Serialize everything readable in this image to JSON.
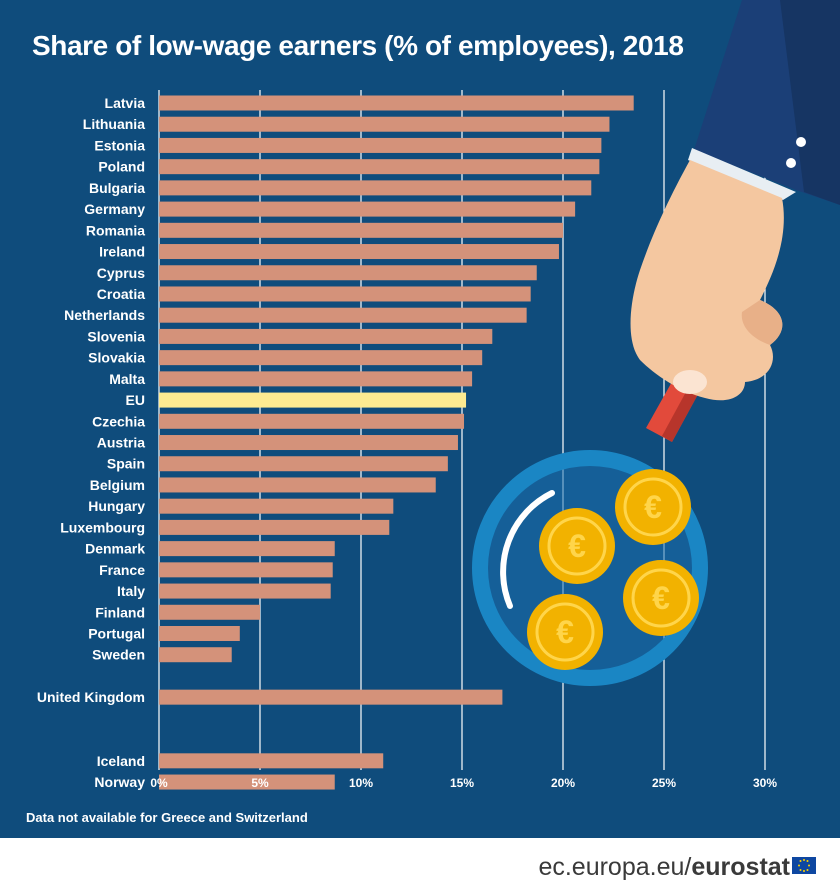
{
  "title": "Share of low-wage earners (% of employees), 2018",
  "footnote": "Data not available for Greece and Switzerland",
  "brand": {
    "site": "ec.europa.eu/",
    "org": "eurostat"
  },
  "colors": {
    "background": "#0f4c7c",
    "bar": "#d4927a",
    "highlight": "#fdeb91",
    "grid": "#ffffff",
    "text": "#ffffff"
  },
  "chart_data": {
    "type": "bar",
    "orientation": "horizontal",
    "title": "Share of low-wage earners (% of employees), 2018",
    "xlabel": "",
    "ylabel": "",
    "xlim": [
      0,
      30
    ],
    "ticks": [
      "0%",
      "5%",
      "10%",
      "15%",
      "20%",
      "25%",
      "30%"
    ],
    "grid": true,
    "highlight": "EU",
    "categories": [
      "Latvia",
      "Lithuania",
      "Estonia",
      "Poland",
      "Bulgaria",
      "Germany",
      "Romania",
      "Ireland",
      "Cyprus",
      "Croatia",
      "Netherlands",
      "Slovenia",
      "Slovakia",
      "Malta",
      "EU",
      "Czechia",
      "Austria",
      "Spain",
      "Belgium",
      "Hungary",
      "Luxembourg",
      "Denmark",
      "France",
      "Italy",
      "Finland",
      "Portugal",
      "Sweden",
      "United Kingdom",
      "Iceland",
      "Norway"
    ],
    "values": [
      23.5,
      22.3,
      21.9,
      21.8,
      21.4,
      20.6,
      20.0,
      19.8,
      18.7,
      18.4,
      18.2,
      16.5,
      16.0,
      15.5,
      15.2,
      15.1,
      14.8,
      14.3,
      13.7,
      11.6,
      11.4,
      8.7,
      8.6,
      8.5,
      5.0,
      4.0,
      3.6,
      17.0,
      11.1,
      8.7
    ]
  },
  "illustration": {
    "icons": [
      "hand-icon",
      "magnifying-glass-icon",
      "euro-coin-icon"
    ]
  }
}
